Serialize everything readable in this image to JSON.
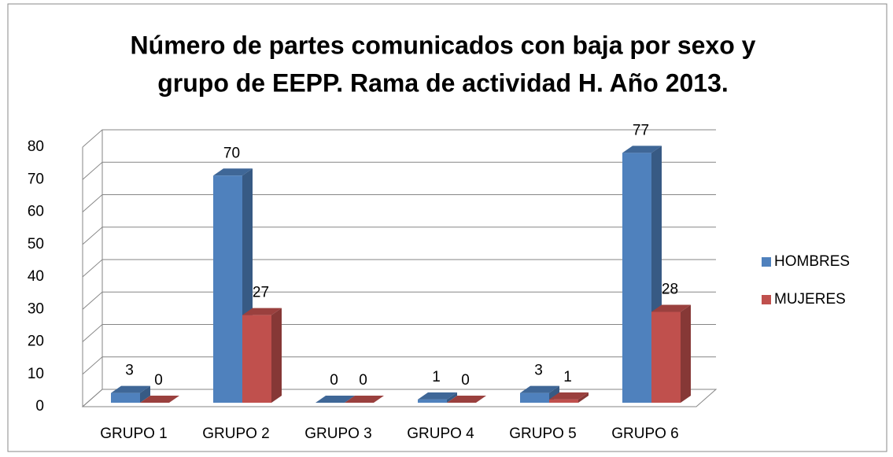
{
  "chart_data": {
    "type": "bar",
    "title": [
      "Número de partes comunicados con baja  por sexo y",
      "grupo de EEPP. Rama de actividad H. Año 2013."
    ],
    "categories": [
      "GRUPO 1",
      "GRUPO 2",
      "GRUPO 3",
      "GRUPO 4",
      "GRUPO 5",
      "GRUPO 6"
    ],
    "series": [
      {
        "name": "HOMBRES",
        "color": "#4f81bd",
        "values": [
          3,
          70,
          0,
          1,
          3,
          77
        ]
      },
      {
        "name": "MUJERES",
        "color": "#c0504d",
        "values": [
          0,
          27,
          0,
          0,
          1,
          28
        ]
      }
    ],
    "ylim": [
      0,
      80
    ],
    "yticks": [
      0,
      10,
      20,
      30,
      40,
      50,
      60,
      70,
      80
    ],
    "grid": true,
    "legend": "right"
  }
}
